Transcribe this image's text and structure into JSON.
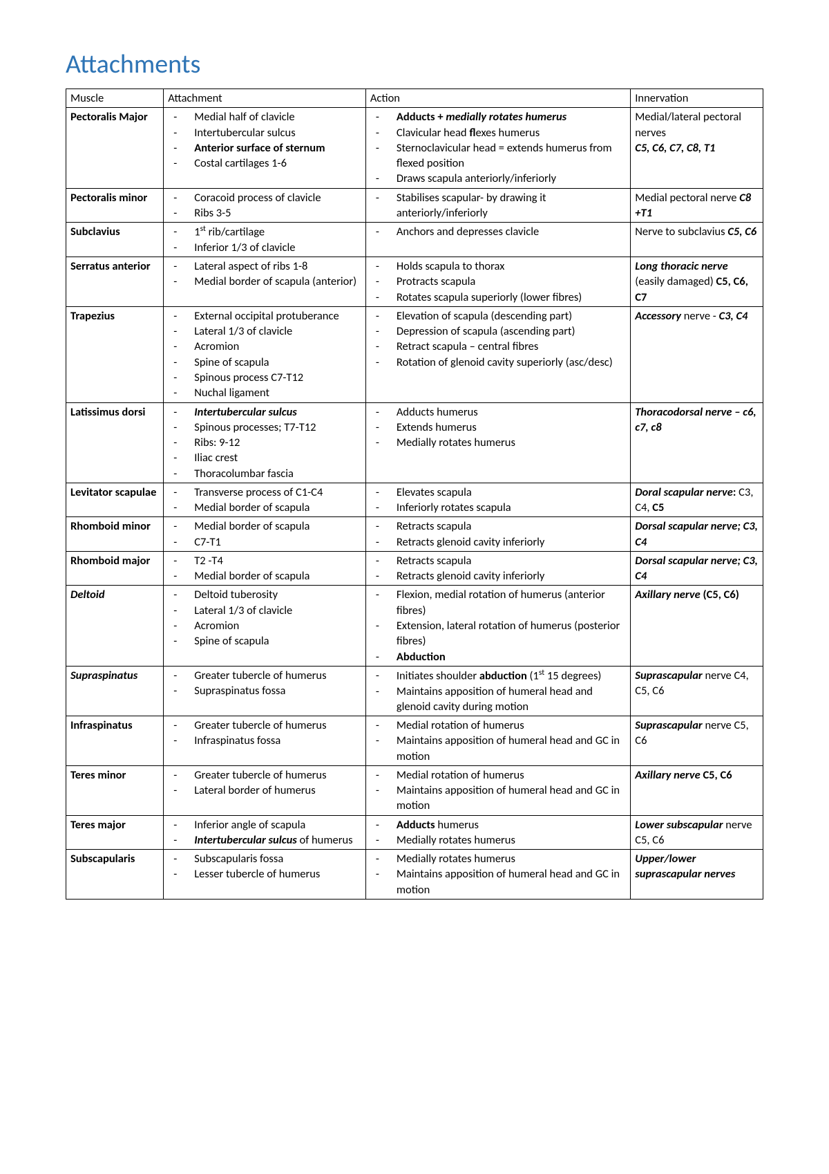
{
  "title": "Attachments",
  "title_color": "#2e74b5",
  "columns": [
    {
      "label": "Muscle",
      "width": "14%"
    },
    {
      "label": "Attachment",
      "width": "29%"
    },
    {
      "label": "Action",
      "width": "38%"
    },
    {
      "label": "Innervation",
      "width": "19%"
    }
  ],
  "rows": [
    {
      "muscle": {
        "html": "<span class=\"b\">Pectoralis Major</span>"
      },
      "attachment": {
        "list": [
          "Medial half of clavicle",
          "Intertubercular sulcus",
          "<span class=\"b\">Anterior surface of sternum</span>",
          "Costal cartilages 1-6"
        ]
      },
      "action": {
        "list": [
          "<span class=\"b\">Adducts + <span class=\"i\">medially rotates humerus</span></span>",
          "Clavicular head <span class=\"b\">fl</span>exes humerus",
          "Sternoclavicular head = extends humerus from flexed position",
          "Draws scapula anteriorly/inferiorly"
        ]
      },
      "innervation": {
        "html": "Medial/lateral pectoral nerves<br><span class=\"bi\">C5, C6, C7, C8, T1</span>"
      }
    },
    {
      "muscle": {
        "html": "<span class=\"b\">Pectoralis minor</span>"
      },
      "attachment": {
        "list": [
          "Coracoid process of clavicle",
          "Ribs 3-5"
        ]
      },
      "action": {
        "list": [
          "Stabilises scapular- by drawing it anteriorly/inferiorly"
        ]
      },
      "innervation": {
        "html": "Medial pectoral nerve <span class=\"bi\">C8 +T1</span>"
      }
    },
    {
      "muscle": {
        "html": "<span class=\"b\">Subclavius</span>"
      },
      "attachment": {
        "list": [
          "1<sup>st</sup> rib/cartilage",
          "Inferior 1/3 of clavicle"
        ]
      },
      "action": {
        "list": [
          "Anchors and depresses clavicle"
        ]
      },
      "innervation": {
        "html": "Nerve to subclavius <span class=\"bi\">C5, C6</span>"
      }
    },
    {
      "muscle": {
        "html": "<span class=\"b\">Serratus anterior</span>"
      },
      "attachment": {
        "list": [
          "Lateral aspect of ribs 1-8",
          "Medial border of scapula (anterior)"
        ]
      },
      "action": {
        "list": [
          "Holds scapula to thorax",
          "Protracts scapula",
          "Rotates scapula superiorly (lower fibres)"
        ]
      },
      "innervation": {
        "html": "<span class=\"bi\">Long thoracic nerve</span> (easily damaged) <span class=\"b\">C5, C6, C7</span>"
      }
    },
    {
      "muscle": {
        "html": "<span class=\"b\">Trapezius</span>"
      },
      "attachment": {
        "list": [
          "External occipital protuberance",
          "Lateral 1/3 of clavicle",
          "Acromion",
          "Spine of scapula",
          "Spinous process C7-T12",
          "Nuchal ligament"
        ]
      },
      "action": {
        "list": [
          "Elevation of scapula (descending part)",
          "Depression of scapula (ascending part)",
          "Retract scapula – central fibres",
          "Rotation of glenoid cavity superiorly (asc/desc)"
        ]
      },
      "innervation": {
        "html": "<span class=\"bi\">Accessory</span> nerve - <span class=\"bi\">C3, C4</span>"
      }
    },
    {
      "muscle": {
        "html": "<span class=\"b\">Latissimus dorsi</span>"
      },
      "attachment": {
        "list": [
          "<span class=\"bi\">Intertubercular sulcus</span>",
          "Spinous processes; T7-T12",
          "Ribs: 9-12",
          "Iliac crest",
          "Thoracolumbar fascia"
        ]
      },
      "action": {
        "list": [
          "Adducts humerus",
          "Extends humerus",
          "Medially rotates humerus"
        ]
      },
      "innervation": {
        "html": "<span class=\"bi\">Thoracodorsal nerve – c6, c7, c8</span>"
      }
    },
    {
      "muscle": {
        "html": "<span class=\"b\">Levitator scapulae</span>"
      },
      "attachment": {
        "list": [
          "Transverse process of C1-C4",
          "Medial border of scapula"
        ]
      },
      "action": {
        "list": [
          "Elevates scapula",
          "Inferiorly rotates scapula"
        ]
      },
      "innervation": {
        "html": "<span class=\"bi\">Doral scapular nerve</span><span class=\"b\">:</span> C3, C4, <span class=\"b\">C5</span>"
      }
    },
    {
      "muscle": {
        "html": "<span class=\"b\">Rhomboid minor</span>"
      },
      "attachment": {
        "list": [
          "Medial border of scapula",
          "C7-T1"
        ]
      },
      "action": {
        "list": [
          "Retracts scapula",
          "Retracts glenoid cavity inferiorly"
        ]
      },
      "innervation": {
        "html": "<span class=\"bi\">Dorsal scapular nerve; C3, C4</span>"
      }
    },
    {
      "muscle": {
        "html": "<span class=\"b\">Rhomboid major</span>"
      },
      "attachment": {
        "list": [
          "T2 -T4",
          "Medial border of scapula"
        ]
      },
      "action": {
        "list": [
          "Retracts scapula",
          "Retracts glenoid cavity inferiorly"
        ]
      },
      "innervation": {
        "html": "<span class=\"bi\">Dorsal scapular nerve; C3, C4</span>"
      }
    },
    {
      "muscle": {
        "html": "<span class=\"bi\">Deltoid</span>"
      },
      "attachment": {
        "list": [
          "Deltoid tuberosity",
          "Lateral 1/3 of clavicle",
          "Acromion",
          "Spine of scapula"
        ]
      },
      "action": {
        "list": [
          "Flexion, medial rotation of humerus (anterior fibres)",
          "Extension, lateral rotation of humerus (posterior fibres)",
          "<span class=\"b\">Abduction</span>"
        ]
      },
      "innervation": {
        "html": "<span class=\"bi\">Axillary nerve</span> <span class=\"b\">(C5, C6)</span>"
      }
    },
    {
      "muscle": {
        "html": "<span class=\"bi\">Supraspinatus</span>"
      },
      "attachment": {
        "list": [
          "Greater tubercle of humerus",
          "Supraspinatus fossa"
        ]
      },
      "action": {
        "list": [
          "Initiates shoulder <span class=\"b\">abduction</span> (1<sup>st</sup> 15 degrees)",
          "Maintains apposition of humeral head and glenoid cavity during motion"
        ]
      },
      "innervation": {
        "html": "<span class=\"bi\">Suprascapular</span> nerve C4, C5, C6"
      }
    },
    {
      "muscle": {
        "html": "<span class=\"b\">Infraspinatus</span>"
      },
      "attachment": {
        "list": [
          "Greater tubercle of humerus",
          "Infraspinatus fossa"
        ]
      },
      "action": {
        "list": [
          "Medial rotation of humerus",
          "Maintains apposition of humeral head and GC in motion"
        ]
      },
      "innervation": {
        "html": "<span class=\"bi\">Suprascapular</span> nerve C5, C6"
      }
    },
    {
      "muscle": {
        "html": "<span class=\"b\">Teres minor</span>"
      },
      "attachment": {
        "list": [
          "Greater tubercle of humerus",
          "Lateral border of humerus"
        ]
      },
      "action": {
        "list": [
          "Medial rotation of humerus",
          "Maintains apposition of humeral head and GC in motion"
        ]
      },
      "innervation": {
        "html": "<span class=\"bi\">Axillary nerve</span> <span class=\"b\">C5, C6</span>"
      }
    },
    {
      "muscle": {
        "html": "<span class=\"b\">Teres major</span>"
      },
      "attachment": {
        "list": [
          "Inferior angle of scapula",
          "<span class=\"bi\">Intertubercular sulcus</span> of humerus"
        ]
      },
      "action": {
        "list": [
          "<span class=\"b\">Adducts</span> humerus",
          "Medially rotates humerus"
        ]
      },
      "innervation": {
        "html": "<span class=\"bi\">Lower subscapular</span> nerve C5, C6"
      }
    },
    {
      "muscle": {
        "html": "<span class=\"b\">Subscapularis</span>"
      },
      "attachment": {
        "list": [
          "Subscapularis fossa",
          "Lesser tubercle of humerus"
        ]
      },
      "action": {
        "list": [
          "Medially rotates humerus",
          "Maintains apposition of humeral head and GC in motion"
        ]
      },
      "innervation": {
        "html": "<span class=\"bi\">Upper/lower suprascapular nerves</span>"
      }
    }
  ]
}
